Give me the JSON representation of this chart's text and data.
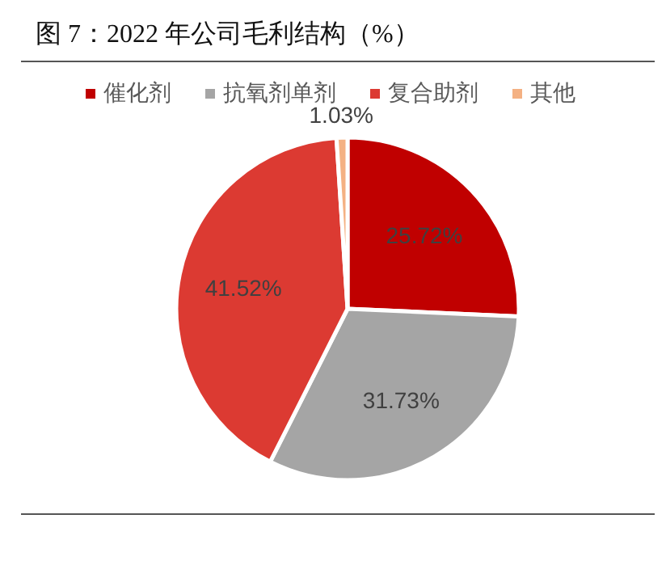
{
  "chart_data": {
    "type": "pie",
    "title": "图 7：2022 年公司毛利结构（%）",
    "categories": [
      "催化剂",
      "抗氧剂单剂",
      "复合助剂",
      "其他"
    ],
    "values": [
      25.72,
      31.73,
      41.52,
      1.03
    ],
    "colors": [
      "#c00000",
      "#a5a5a5",
      "#dc3a32",
      "#f4b183"
    ],
    "value_labels": [
      "25.72%",
      "31.73%",
      "41.52%",
      "1.03%"
    ],
    "legend": "top"
  }
}
